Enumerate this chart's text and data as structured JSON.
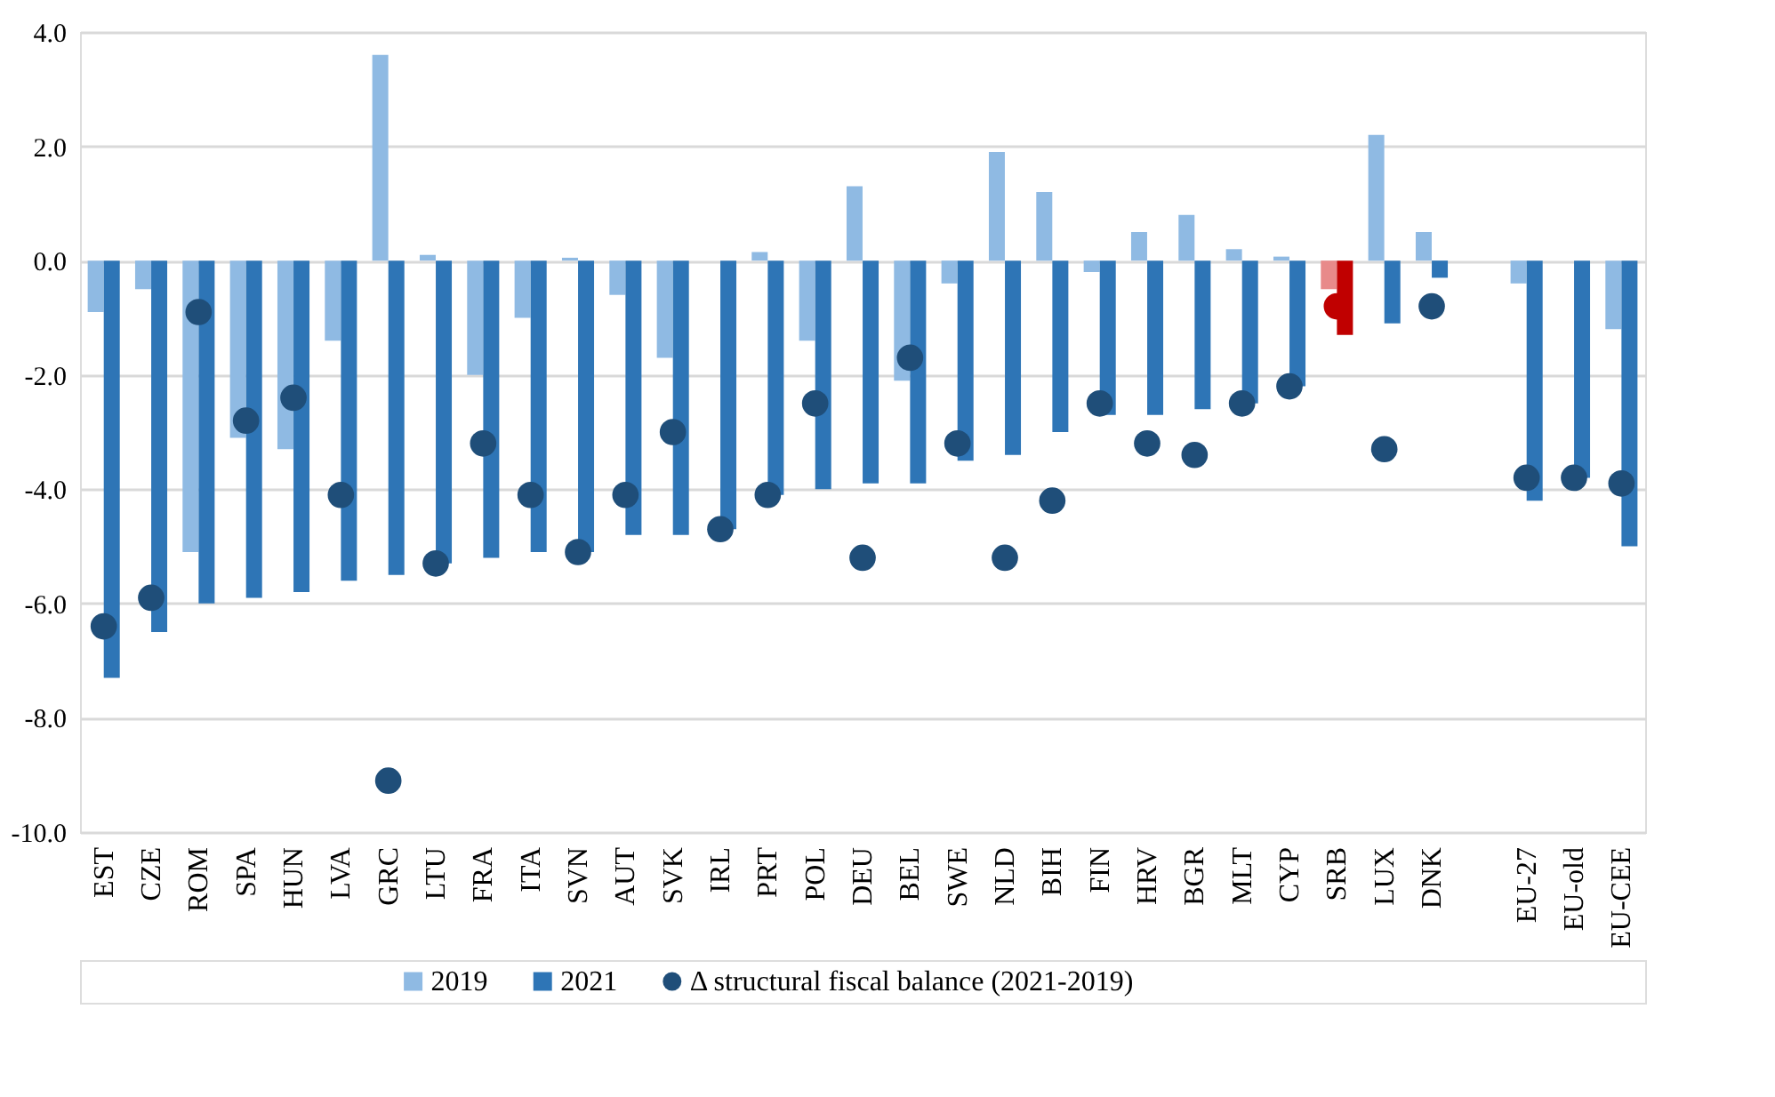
{
  "chart_data": {
    "type": "bar",
    "categories": [
      "EST",
      "CZE",
      "ROM",
      "SPA",
      "HUN",
      "LVA",
      "GRC",
      "LTU",
      "FRA",
      "ITA",
      "SVN",
      "AUT",
      "SVK",
      "IRL",
      "PRT",
      "POL",
      "DEU",
      "BEL",
      "SWE",
      "NLD",
      "BIH",
      "FIN",
      "HRV",
      "BGR",
      "MLT",
      "CYP",
      "SRB",
      "LUX",
      "DNK",
      null,
      "EU-27",
      "EU-old",
      "EU-CEE"
    ],
    "series": [
      {
        "name": "2019",
        "type": "bar",
        "color": "#8fbae3",
        "colors": [
          "#8fbae3",
          "#8fbae3",
          "#8fbae3",
          "#8fbae3",
          "#8fbae3",
          "#8fbae3",
          "#8fbae3",
          "#8fbae3",
          "#8fbae3",
          "#8fbae3",
          "#8fbae3",
          "#8fbae3",
          "#8fbae3",
          "#8fbae3",
          "#8fbae3",
          "#8fbae3",
          "#8fbae3",
          "#8fbae3",
          "#8fbae3",
          "#8fbae3",
          "#8fbae3",
          "#8fbae3",
          "#8fbae3",
          "#8fbae3",
          "#8fbae3",
          "#8fbae3",
          "#e88a8a",
          "#8fbae3",
          "#8fbae3",
          "#8fbae3",
          "#8fbae3",
          "#8fbae3",
          "#8fbae3"
        ],
        "values": [
          -0.9,
          -0.5,
          -5.1,
          -3.1,
          -3.3,
          -1.4,
          3.6,
          0.1,
          -2.0,
          -1.0,
          0.05,
          -0.6,
          -1.7,
          0.0,
          0.15,
          -1.4,
          1.3,
          -2.1,
          -0.4,
          1.9,
          1.2,
          -0.2,
          0.5,
          0.8,
          0.2,
          0.07,
          -0.5,
          2.2,
          0.5,
          null,
          -0.4,
          0.0,
          -1.2
        ]
      },
      {
        "name": "2021",
        "type": "bar",
        "color": "#2e75b6",
        "colors": [
          "#2e75b6",
          "#2e75b6",
          "#2e75b6",
          "#2e75b6",
          "#2e75b6",
          "#2e75b6",
          "#2e75b6",
          "#2e75b6",
          "#2e75b6",
          "#2e75b6",
          "#2e75b6",
          "#2e75b6",
          "#2e75b6",
          "#2e75b6",
          "#2e75b6",
          "#2e75b6",
          "#2e75b6",
          "#2e75b6",
          "#2e75b6",
          "#2e75b6",
          "#2e75b6",
          "#2e75b6",
          "#2e75b6",
          "#2e75b6",
          "#2e75b6",
          "#2e75b6",
          "#c00000",
          "#2e75b6",
          "#2e75b6",
          "#2e75b6",
          "#2e75b6",
          "#2e75b6",
          "#2e75b6"
        ],
        "values": [
          -7.3,
          -6.5,
          -6.0,
          -5.9,
          -5.8,
          -5.6,
          -5.5,
          -5.3,
          -5.2,
          -5.1,
          -5.1,
          -4.8,
          -4.8,
          -4.7,
          -4.1,
          -4.0,
          -3.9,
          -3.9,
          -3.5,
          -3.4,
          -3.0,
          -2.7,
          -2.7,
          -2.6,
          -2.5,
          -2.2,
          -1.3,
          -1.1,
          -0.3,
          null,
          -4.2,
          -3.8,
          -5.0
        ]
      },
      {
        "name": "Δ structural fiscal balance (2021-2019)",
        "type": "scatter",
        "color": "#1f4e79",
        "colors": [
          "#1f4e79",
          "#1f4e79",
          "#1f4e79",
          "#1f4e79",
          "#1f4e79",
          "#1f4e79",
          "#1f4e79",
          "#1f4e79",
          "#1f4e79",
          "#1f4e79",
          "#1f4e79",
          "#1f4e79",
          "#1f4e79",
          "#1f4e79",
          "#1f4e79",
          "#1f4e79",
          "#1f4e79",
          "#1f4e79",
          "#1f4e79",
          "#1f4e79",
          "#1f4e79",
          "#1f4e79",
          "#1f4e79",
          "#1f4e79",
          "#1f4e79",
          "#1f4e79",
          "#c00000",
          "#1f4e79",
          "#1f4e79",
          "#1f4e79",
          "#1f4e79",
          "#1f4e79",
          "#1f4e79"
        ],
        "values": [
          -6.4,
          -5.9,
          -0.9,
          -2.8,
          -2.4,
          -4.1,
          -9.1,
          -5.3,
          -3.2,
          -4.1,
          -5.1,
          -4.1,
          -3.0,
          -4.7,
          -4.1,
          -2.5,
          -5.2,
          -1.7,
          -3.2,
          -5.2,
          -4.2,
          -2.5,
          -3.2,
          -3.4,
          -2.5,
          -2.2,
          -0.8,
          -3.3,
          -0.8,
          null,
          -3.8,
          -3.8,
          -3.9
        ]
      }
    ],
    "ylim": [
      -10,
      4
    ],
    "yticks": [
      {
        "value": -10,
        "label": "-10.0"
      },
      {
        "value": -8,
        "label": "-8.0"
      },
      {
        "value": -6,
        "label": "-6.0"
      },
      {
        "value": -4,
        "label": "-4.0"
      },
      {
        "value": -2,
        "label": "-2.0"
      },
      {
        "value": 0,
        "label": "0.0"
      },
      {
        "value": 2,
        "label": "2.0"
      },
      {
        "value": 4,
        "label": "4.0"
      }
    ],
    "grid": "y",
    "legend": "bottom",
    "marker": "circle"
  }
}
